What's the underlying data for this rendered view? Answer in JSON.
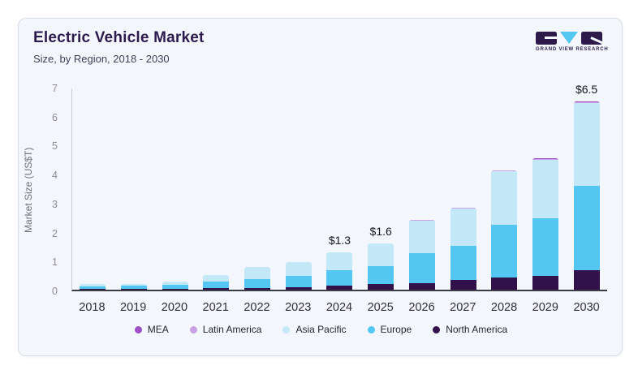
{
  "brand": {
    "name": "GRAND VIEW RESEARCH"
  },
  "chart_data": {
    "type": "bar",
    "stacked": true,
    "title": "Electric Vehicle Market",
    "subtitle": "Size, by Region, 2018 - 2030",
    "ylabel": "Market Size (US$T)",
    "ylim": [
      0,
      7
    ],
    "yticks": [
      0,
      1,
      2,
      3,
      4,
      5,
      6,
      7
    ],
    "grid": false,
    "legend_position": "bottom",
    "categories": [
      "2018",
      "2019",
      "2020",
      "2021",
      "2022",
      "2023",
      "2024",
      "2025",
      "2026",
      "2027",
      "2028",
      "2029",
      "2030"
    ],
    "series": [
      {
        "name": "North America",
        "color": "#31124A",
        "values": [
          0.03,
          0.04,
          0.04,
          0.05,
          0.07,
          0.09,
          0.14,
          0.19,
          0.23,
          0.33,
          0.42,
          0.49,
          0.67
        ]
      },
      {
        "name": "Europe",
        "color": "#53C6F1",
        "values": [
          0.08,
          0.09,
          0.13,
          0.23,
          0.3,
          0.4,
          0.53,
          0.62,
          1.03,
          1.19,
          1.82,
          1.98,
          2.91
        ]
      },
      {
        "name": "Asia Pacific",
        "color": "#C3E8F8",
        "values": [
          0.09,
          0.07,
          0.11,
          0.23,
          0.41,
          0.46,
          0.63,
          0.79,
          1.12,
          1.28,
          1.86,
          2.0,
          2.86
        ]
      },
      {
        "name": "Latin America",
        "color": "#C9A1E4",
        "values": [
          0,
          0,
          0,
          0,
          0,
          0,
          0,
          0,
          0.01,
          0.01,
          0.01,
          0.02,
          0.03
        ]
      },
      {
        "name": "MEA",
        "color": "#9C50C6",
        "values": [
          0,
          0,
          0,
          0,
          0,
          0,
          0,
          0,
          0,
          0,
          0,
          0.01,
          0.02
        ]
      }
    ],
    "legend_order": [
      "MEA",
      "Latin America",
      "Asia Pacific",
      "Europe",
      "North America"
    ],
    "annotations": {
      "2024": "$1.3",
      "2025": "$1.6",
      "2030": "$6.5"
    },
    "totals": [
      0.2,
      0.2,
      0.28,
      0.51,
      0.78,
      0.95,
      1.3,
      1.6,
      2.39,
      2.81,
      4.11,
      4.5,
      6.49
    ]
  }
}
